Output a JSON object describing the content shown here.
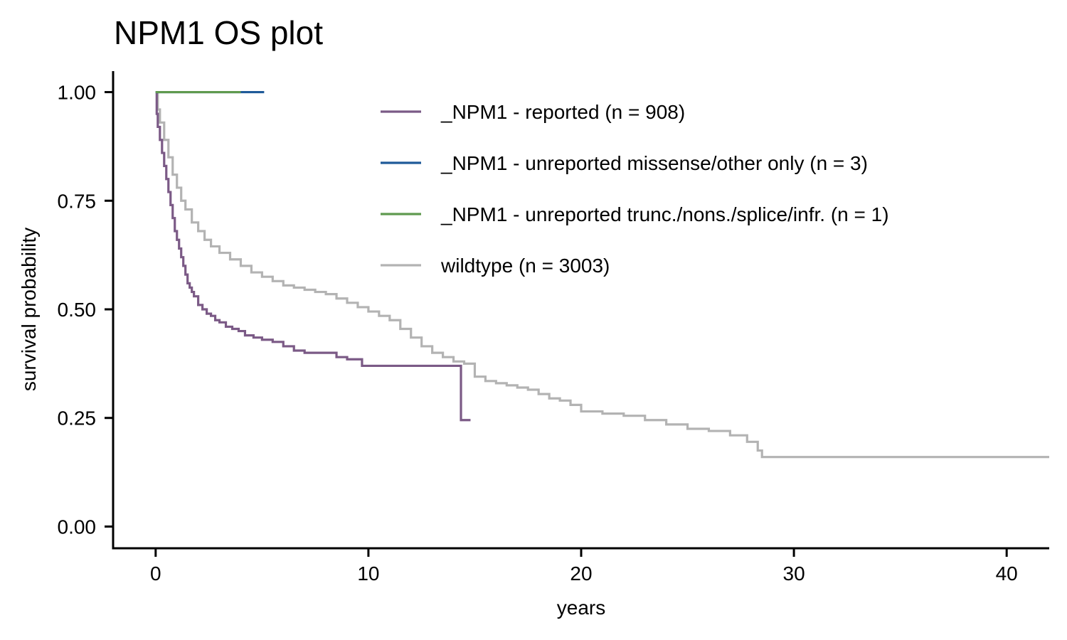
{
  "chart_data": {
    "type": "line",
    "title": "NPM1 OS plot",
    "xlabel": "years",
    "ylabel": "survival probability",
    "xlim": [
      -2,
      42
    ],
    "ylim": [
      -0.05,
      1.05
    ],
    "x_ticks": [
      0,
      10,
      20,
      30,
      40
    ],
    "x_tick_labels": [
      "0",
      "10",
      "20",
      "30",
      "40"
    ],
    "y_ticks": [
      0,
      0.25,
      0.5,
      0.75,
      1
    ],
    "y_tick_labels": [
      "0.00",
      "0.25",
      "0.50",
      "0.75",
      "1.00"
    ],
    "grid": false,
    "legend_position": "top-right",
    "series": [
      {
        "name": "_NPM1 - reported (n = 908)",
        "color": "#7b5a86",
        "step": true,
        "x": [
          0,
          0.05,
          0.1,
          0.2,
          0.3,
          0.4,
          0.5,
          0.6,
          0.7,
          0.8,
          0.9,
          1.0,
          1.1,
          1.2,
          1.3,
          1.4,
          1.5,
          1.6,
          1.7,
          1.8,
          2.0,
          2.2,
          2.4,
          2.6,
          2.8,
          3.0,
          3.3,
          3.6,
          3.9,
          4.2,
          4.6,
          5.0,
          5.5,
          6.0,
          6.5,
          7.0,
          7.5,
          8.0,
          8.5,
          9.0,
          9.5,
          9.7,
          10.5,
          11.5,
          12.5,
          13.5,
          14.2,
          14.35,
          14.8
        ],
        "y": [
          1.0,
          0.95,
          0.92,
          0.89,
          0.86,
          0.83,
          0.8,
          0.77,
          0.74,
          0.71,
          0.68,
          0.66,
          0.64,
          0.62,
          0.6,
          0.58,
          0.56,
          0.55,
          0.54,
          0.53,
          0.51,
          0.5,
          0.49,
          0.485,
          0.475,
          0.47,
          0.46,
          0.455,
          0.45,
          0.44,
          0.435,
          0.43,
          0.425,
          0.415,
          0.405,
          0.4,
          0.4,
          0.4,
          0.39,
          0.385,
          0.385,
          0.37,
          0.37,
          0.37,
          0.37,
          0.37,
          0.37,
          0.245,
          0.245
        ]
      },
      {
        "name": "_NPM1 - unreported missense/other only (n = 3)",
        "color": "#1f5a99",
        "step": true,
        "x": [
          0,
          5.1
        ],
        "y": [
          1.0,
          1.0
        ]
      },
      {
        "name": "_NPM1 - unreported trunc./nons./splice/infr. (n = 1)",
        "color": "#5f9a4f",
        "step": true,
        "x": [
          0,
          4.0
        ],
        "y": [
          1.0,
          1.0
        ]
      },
      {
        "name": "wildtype (n = 3003)",
        "color": "#b3b3b3",
        "step": true,
        "x": [
          0,
          0.1,
          0.2,
          0.4,
          0.6,
          0.8,
          1.0,
          1.2,
          1.4,
          1.7,
          2.0,
          2.3,
          2.6,
          3.0,
          3.5,
          4.0,
          4.5,
          5.0,
          5.5,
          6.0,
          6.5,
          7.0,
          7.5,
          8.0,
          8.5,
          9.0,
          9.5,
          10.0,
          10.5,
          11.0,
          11.5,
          12.0,
          12.5,
          13.0,
          13.5,
          14.0,
          14.5,
          15.0,
          15.5,
          16.0,
          16.5,
          17.0,
          17.5,
          18.0,
          18.5,
          19.0,
          19.5,
          20.0,
          21.0,
          22.0,
          23.0,
          24.0,
          25.0,
          26.0,
          27.0,
          27.8,
          28.3,
          28.5,
          42
        ],
        "y": [
          1.0,
          0.96,
          0.93,
          0.89,
          0.85,
          0.81,
          0.78,
          0.75,
          0.73,
          0.7,
          0.68,
          0.66,
          0.645,
          0.63,
          0.615,
          0.6,
          0.585,
          0.575,
          0.565,
          0.555,
          0.55,
          0.545,
          0.54,
          0.535,
          0.525,
          0.515,
          0.505,
          0.495,
          0.485,
          0.475,
          0.455,
          0.435,
          0.415,
          0.4,
          0.39,
          0.38,
          0.375,
          0.345,
          0.335,
          0.33,
          0.325,
          0.32,
          0.315,
          0.305,
          0.295,
          0.29,
          0.28,
          0.265,
          0.26,
          0.255,
          0.245,
          0.235,
          0.225,
          0.22,
          0.21,
          0.195,
          0.175,
          0.16,
          0.16
        ]
      }
    ]
  }
}
